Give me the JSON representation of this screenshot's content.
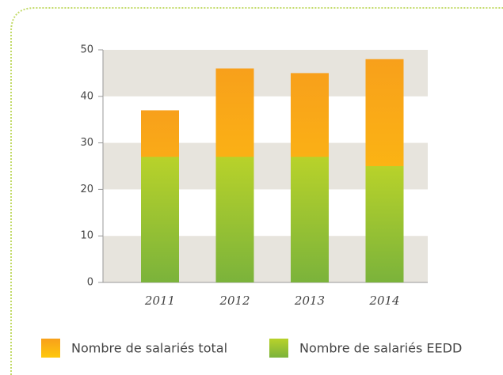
{
  "chart_data": {
    "type": "bar",
    "categories": [
      "2011",
      "2012",
      "2013",
      "2014"
    ],
    "series": [
      {
        "name": "Nombre de salariés total",
        "color": "#f9a41b",
        "values": [
          37,
          46,
          45,
          48
        ]
      },
      {
        "name": "Nombre de salariés EEDD",
        "color": "#9cc233",
        "values": [
          27,
          27,
          27,
          25
        ]
      }
    ],
    "ylim": [
      0,
      50
    ],
    "yticks": [
      0,
      10,
      20,
      30,
      40,
      50
    ],
    "grid": true,
    "legend": "bottom"
  }
}
